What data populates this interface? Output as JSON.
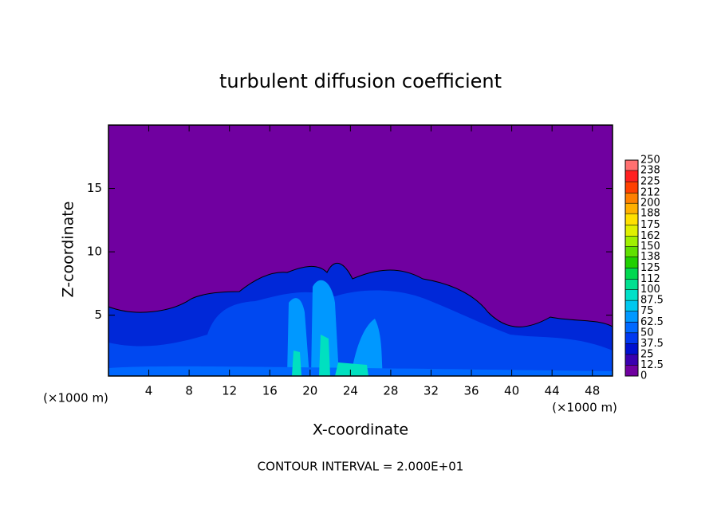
{
  "chart_data": {
    "type": "contour",
    "title": "turbulent diffusion coefficient",
    "x_label": "X-coordinate",
    "y_label": "Z-coordinate",
    "x_unit_left": "(×1000 m)",
    "x_unit_right": "(×1000 m)",
    "footer": "CONTOUR INTERVAL = 2.000E+01",
    "xlim": [
      0,
      50
    ],
    "xticks": [
      4,
      8,
      12,
      16,
      20,
      24,
      28,
      32,
      36,
      40,
      44,
      48
    ],
    "ylim": [
      0.2,
      20
    ],
    "yticks": [
      5,
      10,
      15
    ],
    "colorbar": {
      "levels": [
        0,
        12.5,
        25,
        37.5,
        50,
        62.5,
        75,
        87.5,
        100,
        112,
        125,
        138,
        150,
        162,
        175,
        188,
        200,
        212,
        225,
        238,
        250
      ],
      "colors": [
        "#7000a0",
        "#3a00b0",
        "#0010d0",
        "#0038f0",
        "#0068ff",
        "#0098ff",
        "#00c8f0",
        "#00e0c8",
        "#00e090",
        "#00d850",
        "#20d000",
        "#60e000",
        "#a0f000",
        "#e0f000",
        "#ffe000",
        "#ffb000",
        "#ff8000",
        "#ff4000",
        "#ff2020",
        "#ff7070"
      ]
    }
  }
}
